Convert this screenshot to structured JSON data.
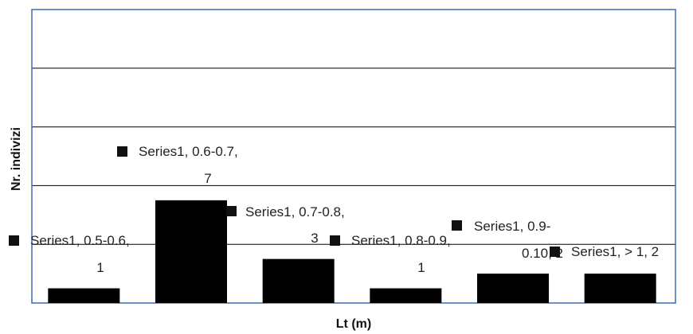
{
  "chart_data": {
    "type": "bar",
    "title": "",
    "xlabel": "Lt (m)",
    "ylabel": "Nr. indivizi",
    "categories": [
      "0.5-0.6",
      "0.6-0.7",
      "0.7-0.8",
      "0.8-0.9",
      "0.9-0.10",
      "> 1"
    ],
    "series": [
      {
        "name": "Series1",
        "values": [
          1,
          7,
          3,
          1,
          2,
          2
        ]
      }
    ],
    "ylim": [
      0,
      20
    ],
    "y_gridlines": [
      0,
      4,
      8,
      12,
      16,
      20
    ],
    "grid": true,
    "legend": "none",
    "bar_color": "#000000",
    "frame_color": "#3a6bb5",
    "data_labels": [
      {
        "category": "0.5-0.6",
        "line1": "Series1, 0.5-0.6,",
        "line2": "1"
      },
      {
        "category": "0.6-0.7",
        "line1": "Series1, 0.6-0.7,",
        "line2": "7"
      },
      {
        "category": "0.7-0.8",
        "line1": "Series1, 0.7-0.8,",
        "line2": "3"
      },
      {
        "category": "0.8-0.9",
        "line1": "Series1, 0.8-0.9,",
        "line2": "1"
      },
      {
        "category": "0.9-0.10",
        "line1": "Series1, 0.9-",
        "line2": "0.10, 2"
      },
      {
        "category": "> 1",
        "line1": "Series1, > 1, 2",
        "line2": ""
      }
    ]
  }
}
